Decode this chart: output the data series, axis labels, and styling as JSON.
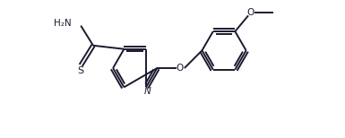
{
  "bg_color": "#ffffff",
  "line_color": "#1a1a2e",
  "line_width": 1.4,
  "figsize": [
    3.85,
    1.54
  ],
  "dpi": 100,
  "xlim": [
    0.0,
    7.8
  ],
  "ylim": [
    0.3,
    3.1
  ]
}
